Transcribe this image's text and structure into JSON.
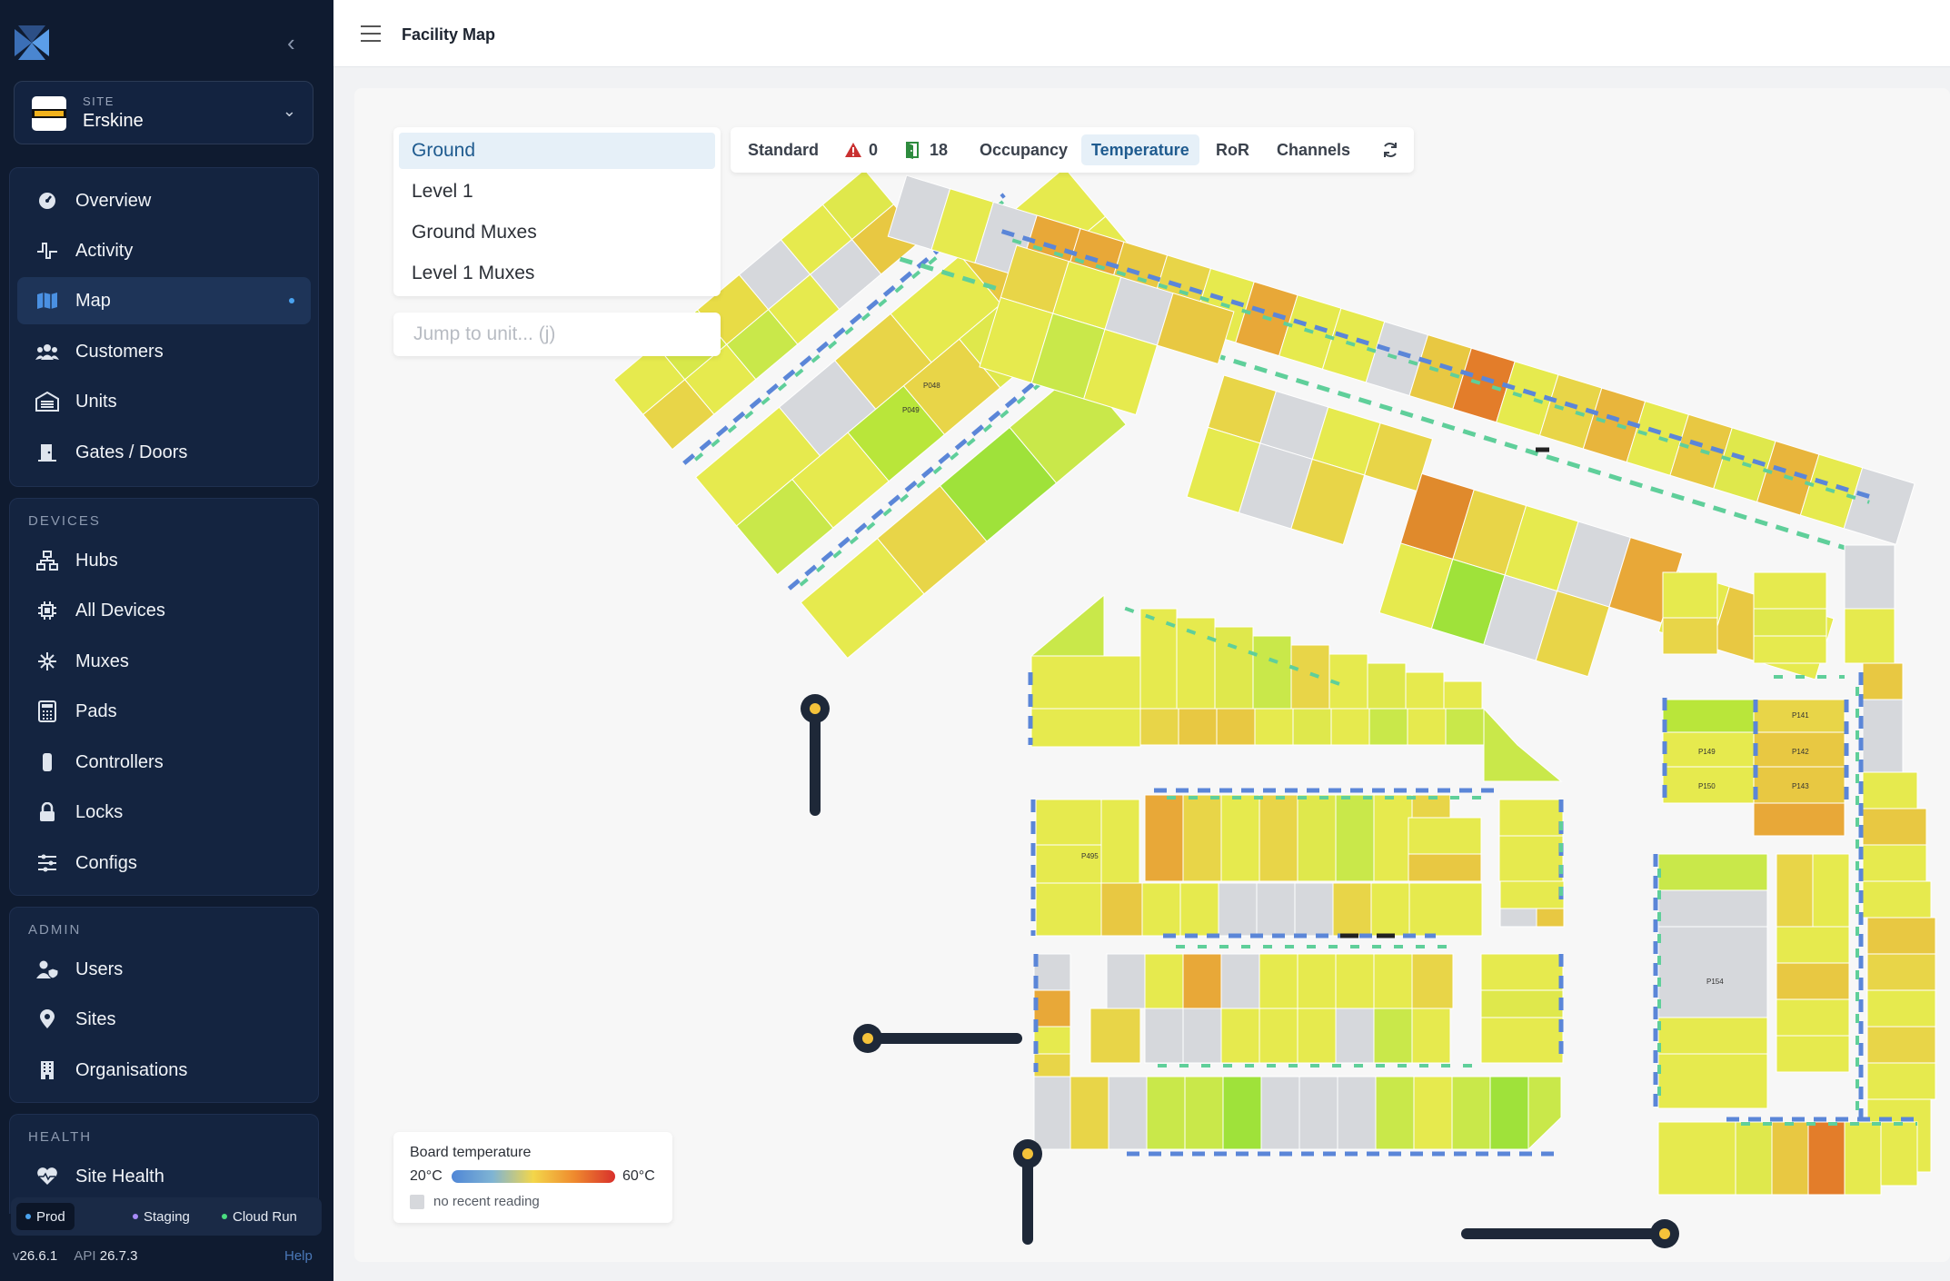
{
  "app": {
    "page_title": "Facility Map"
  },
  "site": {
    "kicker": "SITE",
    "name": "Erskine"
  },
  "nav": {
    "main": [
      {
        "label": "Overview",
        "icon": "gauge-icon"
      },
      {
        "label": "Activity",
        "icon": "pulse-icon"
      },
      {
        "label": "Map",
        "icon": "map-icon",
        "active": true
      },
      {
        "label": "Customers",
        "icon": "users-icon"
      },
      {
        "label": "Units",
        "icon": "warehouse-icon"
      },
      {
        "label": "Gates / Doors",
        "icon": "door-icon"
      }
    ],
    "devices_title": "DEVICES",
    "devices": [
      {
        "label": "Hubs",
        "icon": "network-icon"
      },
      {
        "label": "All Devices",
        "icon": "chip-icon"
      },
      {
        "label": "Muxes",
        "icon": "asterisk-icon"
      },
      {
        "label": "Pads",
        "icon": "keypad-icon"
      },
      {
        "label": "Controllers",
        "icon": "controller-icon"
      },
      {
        "label": "Locks",
        "icon": "lock-icon"
      },
      {
        "label": "Configs",
        "icon": "sliders-icon"
      }
    ],
    "admin_title": "ADMIN",
    "admin": [
      {
        "label": "Users",
        "icon": "user-shield-icon"
      },
      {
        "label": "Sites",
        "icon": "pin-icon"
      },
      {
        "label": "Organisations",
        "icon": "building-icon"
      }
    ],
    "health_title": "HEALTH",
    "health": [
      {
        "label": "Site Health",
        "icon": "heart-pulse-icon"
      }
    ]
  },
  "environments": [
    {
      "label": "Prod",
      "color": "#4aa3f0",
      "selected": true
    },
    {
      "label": "Staging",
      "color": "#a78bfa"
    },
    {
      "label": "Cloud Run",
      "color": "#4ade80"
    }
  ],
  "versions": {
    "app_prefix": "v",
    "app": "26.6.1",
    "api_label": "API",
    "api": "26.7.3",
    "help": "Help"
  },
  "levels": [
    {
      "label": "Ground",
      "selected": true
    },
    {
      "label": "Level 1"
    },
    {
      "label": "Ground Muxes"
    },
    {
      "label": "Level 1 Muxes"
    }
  ],
  "jump_placeholder": "Jump to unit... (j)",
  "toolbar": {
    "standard": "Standard",
    "alerts_count": "0",
    "doors_count": "18",
    "occupancy": "Occupancy",
    "temperature": "Temperature",
    "ror": "RoR",
    "channels": "Channels",
    "refresh_icon": "refresh-icon"
  },
  "legend": {
    "title": "Board temperature",
    "min": "20°C",
    "max": "60°C",
    "none": "no recent reading"
  },
  "unit_labels": [
    "P048",
    "P049",
    "P495",
    "P141",
    "P149",
    "P142",
    "P150",
    "P143",
    "P154"
  ],
  "colors": {
    "sidebar_bg": "#0f1b30",
    "accent": "#1f5b8f",
    "cool": "#b9e63a",
    "warm": "#e8e84a",
    "hot": "#e9962e",
    "no_reading": "#d6d8dc",
    "door_blue": "#5b86d8",
    "door_green": "#5fcf9a"
  }
}
